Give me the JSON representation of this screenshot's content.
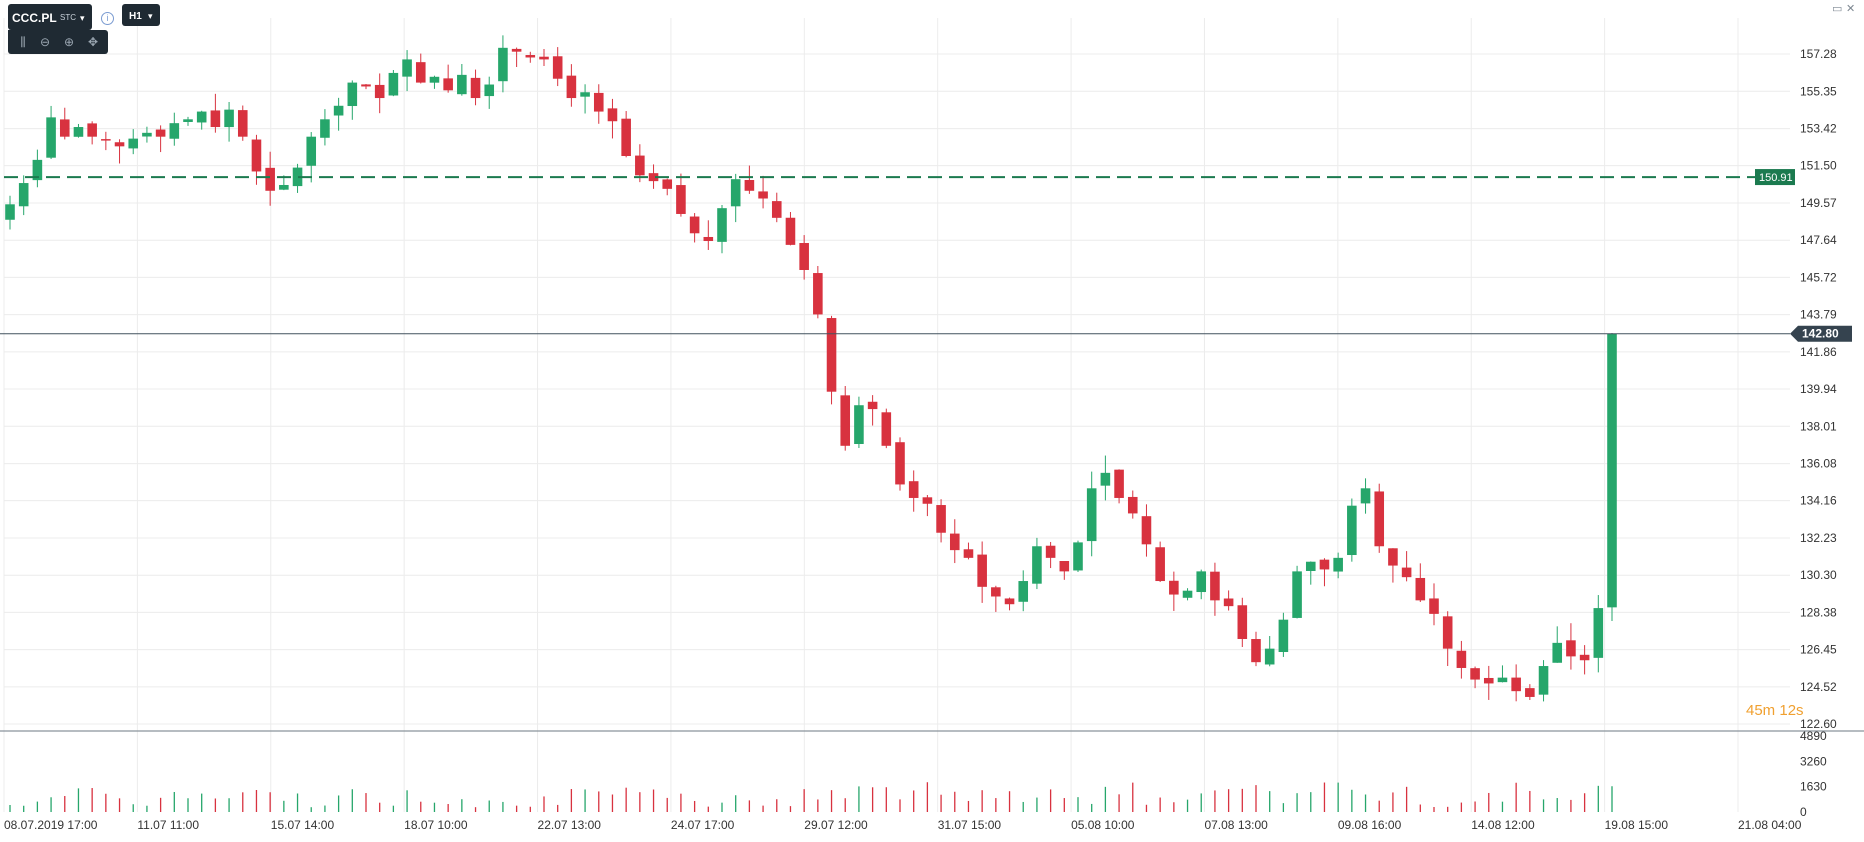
{
  "toolbar": {
    "symbol": "CCC.PL",
    "symbol_sub": "STC",
    "timeframe": "H1",
    "caret": "▾",
    "info": "i",
    "tools": [
      {
        "name": "chart-type-icon",
        "glyph": "⫼"
      },
      {
        "name": "zoom-out-icon",
        "glyph": "⊖"
      },
      {
        "name": "zoom-in-icon",
        "glyph": "⊕"
      },
      {
        "name": "pan-icon",
        "glyph": "✥"
      }
    ]
  },
  "window_controls": {
    "minimize": "▭",
    "close": "✕"
  },
  "countdown": "45m 12s",
  "colors": {
    "up": "#26a66b",
    "down": "#d8323f",
    "current_price_line": "#42525f",
    "current_price_bg": "#35434f",
    "order_line": "#1b7a4f",
    "grid": "#ececec",
    "axis_text": "#333333",
    "countdown": "#f0a030"
  },
  "chart_data": {
    "type": "candlestick",
    "symbol": "CCC.PL",
    "timeframe": "H1",
    "y_ticks": [
      "157.28",
      "155.35",
      "153.42",
      "151.50",
      "149.57",
      "147.64",
      "145.72",
      "143.79",
      "141.86",
      "139.94",
      "138.01",
      "136.08",
      "134.16",
      "132.23",
      "130.30",
      "128.38",
      "126.45",
      "124.52",
      "122.60"
    ],
    "ylim": [
      122.6,
      157.28
    ],
    "x_ticks": [
      "08.07.2019 17:00",
      "11.07 11:00",
      "15.07 14:00",
      "18.07 10:00",
      "22.07 13:00",
      "24.07 17:00",
      "29.07 12:00",
      "31.07 15:00",
      "05.08 10:00",
      "07.08 13:00",
      "09.08 16:00",
      "14.08 12:00",
      "19.08 15:00",
      "21.08 04:00"
    ],
    "current_price": "142.80",
    "order_level": "150.91",
    "volume_ticks": [
      "4890",
      "3260",
      "1630",
      "0"
    ],
    "volume_max": 4890,
    "ohlc_close_path": [
      149.5,
      150.6,
      151.8,
      154.0,
      153.0,
      153.5,
      153.0,
      152.8,
      152.5,
      152.9,
      153.2,
      153.0,
      153.7,
      153.9,
      154.3,
      153.5,
      154.4,
      153.0,
      151.2,
      150.2,
      150.5,
      151.4,
      153.0,
      153.9,
      154.6,
      155.8,
      155.6,
      155.0,
      156.3,
      157.0,
      155.8,
      156.1,
      155.4,
      156.2,
      155.0,
      155.7,
      157.6,
      157.4,
      157.1,
      157.0,
      156.0,
      155.0,
      155.3,
      154.3,
      153.8,
      152.0,
      151.0,
      150.7,
      150.3,
      149.0,
      148.0,
      147.6,
      149.3,
      150.8,
      150.2,
      149.8,
      148.8,
      147.4,
      146.1,
      143.8,
      139.8,
      137.0,
      139.1,
      138.9,
      137.0,
      135.0,
      134.3,
      134.0,
      132.5,
      131.6,
      131.2,
      129.7,
      129.2,
      128.8,
      130.0,
      131.8,
      131.2,
      130.5,
      132.0,
      134.8,
      135.6,
      134.3,
      133.5,
      131.9,
      130.0,
      129.3,
      129.5,
      130.5,
      129.0,
      128.7,
      127.0,
      125.8,
      126.5,
      128.0,
      130.5,
      131.0,
      130.6,
      131.2,
      133.9,
      134.8,
      131.8,
      130.8,
      130.2,
      129.0,
      128.3,
      126.5,
      125.5,
      124.9,
      124.7,
      125.0,
      124.3,
      124.0,
      125.6,
      126.8,
      126.1,
      125.9,
      128.6,
      142.8
    ],
    "volume_note": "volume bars, approximate"
  }
}
